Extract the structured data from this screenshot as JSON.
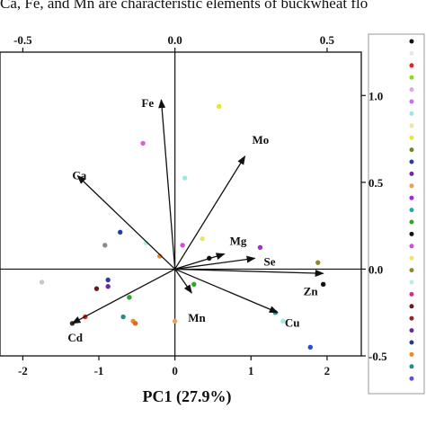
{
  "caption": "Ca, Fe, and Mn are characteristic elements of buckwheat flo",
  "chart_data": {
    "type": "scatter",
    "xlabel": "PC1 (27.9%)",
    "xlim": [
      -2.3,
      2.45
    ],
    "ylim": [
      -0.4,
      1.0
    ],
    "x_ticks": [
      -2,
      -1,
      0,
      1,
      2
    ],
    "x_tick_labels": [
      "-2",
      "-1",
      "0",
      "1",
      "2"
    ],
    "top_ticks": [
      -0.5,
      0.0,
      0.5
    ],
    "top_tick_labels": [
      "-0.5",
      "0.0",
      "0.5"
    ],
    "right_ticks": [
      1.0,
      0.5,
      0.0,
      -0.5
    ],
    "right_tick_labels": [
      "1.0",
      "0.5",
      "0.0",
      "-0.5"
    ],
    "loadings": [
      {
        "name": "Fe",
        "x": -0.18,
        "y": 0.78
      },
      {
        "name": "Mo",
        "x": 0.92,
        "y": 0.52
      },
      {
        "name": "Ca",
        "x": -1.28,
        "y": 0.43
      },
      {
        "name": "Mg",
        "x": 0.65,
        "y": 0.07
      },
      {
        "name": "Se",
        "x": 1.05,
        "y": 0.05
      },
      {
        "name": "Zn",
        "x": 1.95,
        "y": -0.02
      },
      {
        "name": "Mn",
        "x": 0.22,
        "y": -0.11
      },
      {
        "name": "Cu",
        "x": 1.35,
        "y": -0.2
      },
      {
        "name": "Cd",
        "x": -1.35,
        "y": -0.25
      }
    ],
    "points": [
      {
        "x": 0.58,
        "y": 0.75,
        "color": "#e8e82a"
      },
      {
        "x": -0.42,
        "y": 0.58,
        "color": "#e85ad8"
      },
      {
        "x": 0.13,
        "y": 0.42,
        "color": "#9fe8e0"
      },
      {
        "x": -0.72,
        "y": 0.17,
        "color": "#2a3aa8"
      },
      {
        "x": -0.92,
        "y": 0.11,
        "color": "#8a8a8a"
      },
      {
        "x": -0.38,
        "y": 0.12,
        "color": "#b0f0e8"
      },
      {
        "x": 0.1,
        "y": 0.11,
        "color": "#d84ad8"
      },
      {
        "x": 0.36,
        "y": 0.14,
        "color": "#e8e860"
      },
      {
        "x": -0.2,
        "y": 0.06,
        "color": "#e88a2a"
      },
      {
        "x": 0.45,
        "y": 0.05,
        "color": "#111111"
      },
      {
        "x": 1.12,
        "y": 0.1,
        "color": "#a82ad8"
      },
      {
        "x": 1.88,
        "y": 0.03,
        "color": "#8a8a2a"
      },
      {
        "x": 1.95,
        "y": -0.07,
        "color": "#111111"
      },
      {
        "x": -1.75,
        "y": -0.06,
        "color": "#c8c8c8"
      },
      {
        "x": -0.88,
        "y": -0.05,
        "color": "#2a3aa8"
      },
      {
        "x": -0.88,
        "y": -0.08,
        "color": "#6a2aa8"
      },
      {
        "x": -1.03,
        "y": -0.09,
        "color": "#6a1a1a"
      },
      {
        "x": -0.6,
        "y": -0.13,
        "color": "#2aa82a"
      },
      {
        "x": 0.25,
        "y": -0.07,
        "color": "#2aa82a"
      },
      {
        "x": -1.18,
        "y": -0.22,
        "color": "#d82a2a"
      },
      {
        "x": -0.68,
        "y": -0.22,
        "color": "#2a8a8a"
      },
      {
        "x": -0.55,
        "y": -0.24,
        "color": "#e88a2a"
      },
      {
        "x": -0.52,
        "y": -0.25,
        "color": "#d86a2a"
      },
      {
        "x": 0.0,
        "y": -0.24,
        "color": "#e8a060"
      },
      {
        "x": 1.32,
        "y": -0.2,
        "color": "#2a8a8a"
      },
      {
        "x": 1.42,
        "y": -0.24,
        "color": "#9fe8e0"
      },
      {
        "x": 1.78,
        "y": -0.36,
        "color": "#2a4ad8"
      },
      {
        "x": -1.35,
        "y": -0.25,
        "color": "#333333"
      }
    ],
    "legend_colors": [
      "#111111",
      "#e8e8e8",
      "#d82a2a",
      "#8ad82a",
      "#d8a8e8",
      "#c870e8",
      "#9fe8e0",
      "#e8e8a0",
      "#e8e82a",
      "#6a8a2a",
      "#2a3aa8",
      "#6a2aa8",
      "#e8a060",
      "#9f2ad8",
      "#2aa8a8",
      "#2aa82a",
      "#111111",
      "#d84ad8",
      "#e8e860",
      "#8a8a2a",
      "#b0f0e8",
      "#d82a8a",
      "#6a1a1a",
      "#8a2a2a",
      "#6a2aa8",
      "#2a3a8a",
      "#e88a2a",
      "#2a8a8a",
      "#6a4ad8"
    ]
  }
}
